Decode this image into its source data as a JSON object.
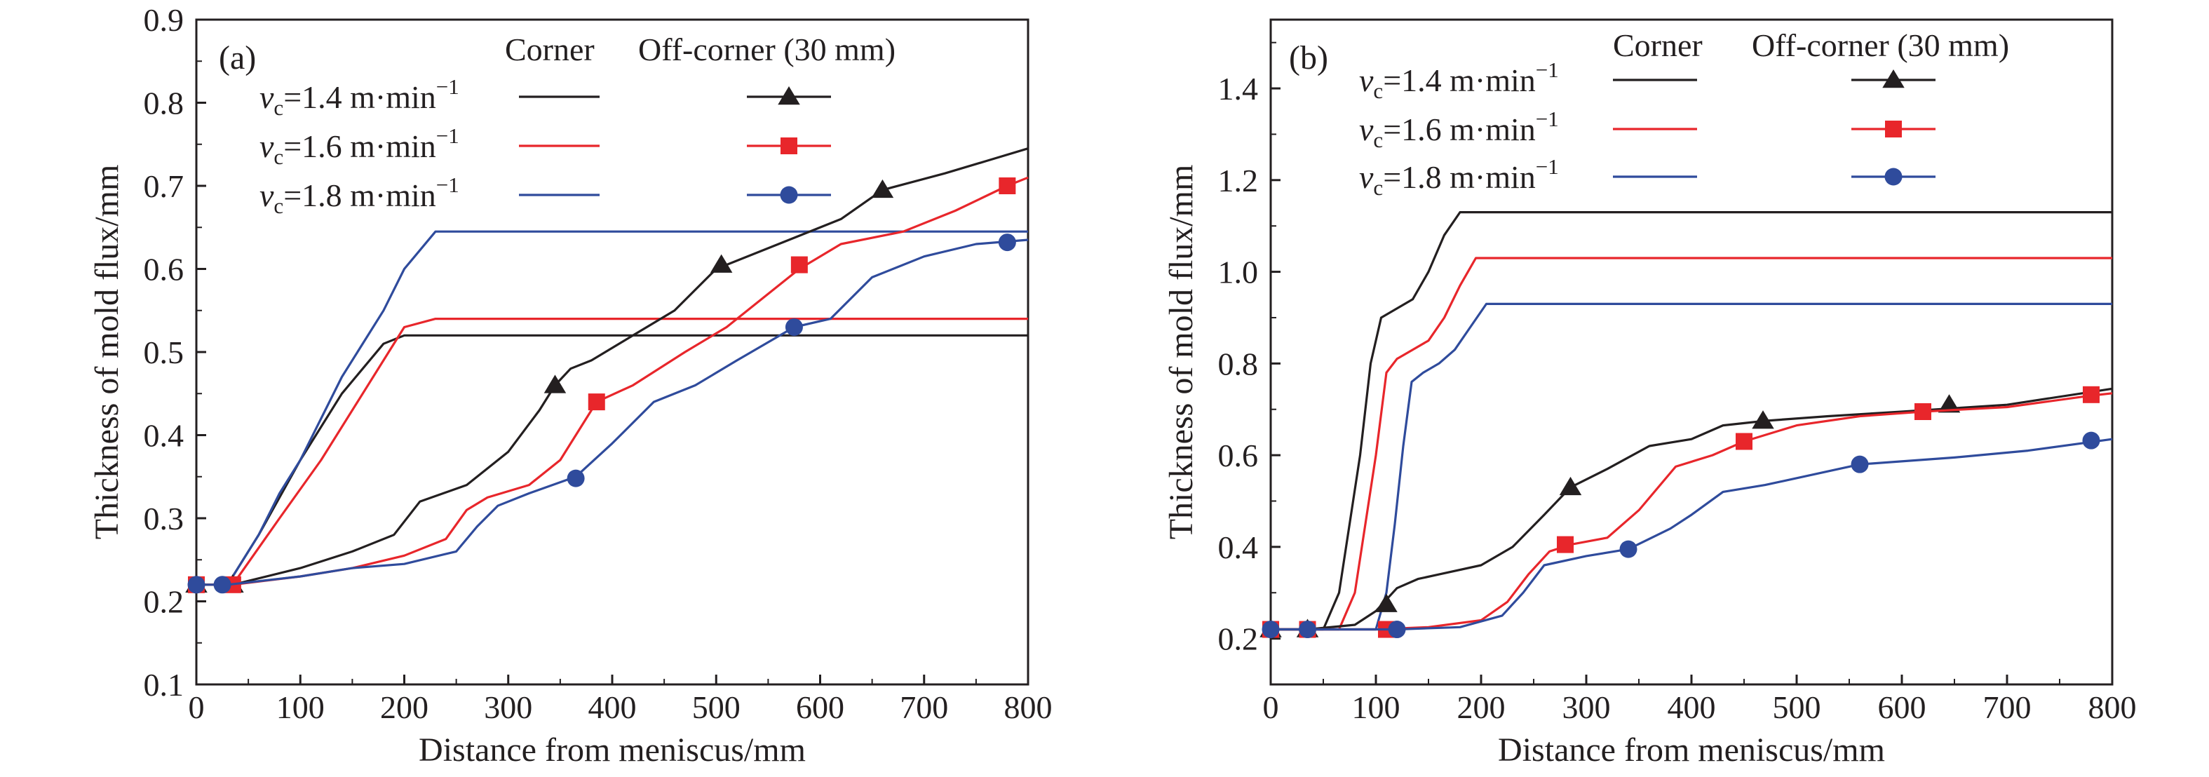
{
  "colors": {
    "black": "#231f20",
    "red": "#e8262b",
    "blue": "#2f4b9c"
  },
  "legend": {
    "header_corner": "Corner",
    "header_off": "Off-corner (30 mm)",
    "entries": [
      {
        "v": "v",
        "sub": "c",
        "text": "=1.4 m·min",
        "sup": "−1",
        "color": "black",
        "marker": "triangle"
      },
      {
        "v": "v",
        "sub": "c",
        "text": "=1.6 m·min",
        "sup": "−1",
        "color": "red",
        "marker": "square"
      },
      {
        "v": "v",
        "sub": "c",
        "text": "=1.8 m·min",
        "sup": "−1",
        "color": "blue",
        "marker": "circle"
      }
    ]
  },
  "chart_data": [
    {
      "type": "line",
      "panel_label": "(a)",
      "xlabel": "Distance from meniscus/mm",
      "ylabel": "Thickness of mold flux/mm",
      "xlim": [
        0,
        800
      ],
      "ylim": [
        0.1,
        0.9
      ],
      "xticks": [
        0,
        100,
        200,
        300,
        400,
        500,
        600,
        700,
        800
      ],
      "yticks": [
        "0.1",
        "0.2",
        "0.3",
        "0.4",
        "0.5",
        "0.6",
        "0.7",
        "0.8",
        "0.9"
      ],
      "series": [
        {
          "name": "Corner, vc=1.4 m·min−1",
          "color": "black",
          "marker": null,
          "x": [
            0,
            30,
            60,
            100,
            140,
            180,
            200,
            800
          ],
          "y": [
            0.22,
            0.22,
            0.28,
            0.37,
            0.45,
            0.51,
            0.52,
            0.52
          ]
        },
        {
          "name": "Corner, vc=1.6 m·min−1",
          "color": "red",
          "marker": null,
          "x": [
            0,
            35,
            80,
            120,
            160,
            200,
            230,
            800
          ],
          "y": [
            0.22,
            0.22,
            0.3,
            0.37,
            0.45,
            0.53,
            0.54,
            0.54
          ]
        },
        {
          "name": "Corner, vc=1.8 m·min−1",
          "color": "blue",
          "marker": null,
          "x": [
            0,
            30,
            60,
            80,
            100,
            140,
            180,
            200,
            230,
            800
          ],
          "y": [
            0.22,
            0.22,
            0.28,
            0.33,
            0.37,
            0.47,
            0.55,
            0.6,
            0.645,
            0.645
          ]
        },
        {
          "name": "Off-corner (30 mm), vc=1.4 m·min−1",
          "color": "black",
          "marker": "triangle",
          "x": [
            0,
            35,
            100,
            150,
            190,
            215,
            260,
            300,
            330,
            345,
            360,
            380,
            420,
            460,
            500,
            560,
            620,
            660,
            720,
            760,
            800
          ],
          "y": [
            0.22,
            0.22,
            0.24,
            0.26,
            0.28,
            0.32,
            0.34,
            0.38,
            0.43,
            0.46,
            0.48,
            0.49,
            0.52,
            0.55,
            0.6,
            0.63,
            0.66,
            0.695,
            0.715,
            0.73,
            0.745
          ],
          "marker_x": [
            0,
            35,
            345,
            505,
            660
          ],
          "marker_y": [
            0.22,
            0.22,
            0.46,
            0.605,
            0.695
          ]
        },
        {
          "name": "Off-corner (30 mm), vc=1.6 m·min−1",
          "color": "red",
          "marker": "square",
          "x": [
            0,
            35,
            100,
            150,
            200,
            240,
            260,
            280,
            320,
            350,
            385,
            420,
            470,
            510,
            540,
            580,
            620,
            680,
            730,
            780,
            800
          ],
          "y": [
            0.22,
            0.22,
            0.23,
            0.24,
            0.255,
            0.275,
            0.31,
            0.325,
            0.34,
            0.37,
            0.44,
            0.46,
            0.5,
            0.53,
            0.56,
            0.6,
            0.63,
            0.645,
            0.67,
            0.7,
            0.71
          ],
          "marker_x": [
            0,
            35,
            385,
            580,
            780
          ],
          "marker_y": [
            0.22,
            0.22,
            0.44,
            0.605,
            0.7
          ]
        },
        {
          "name": "Off-corner (30 mm), vc=1.8 m·min−1",
          "color": "blue",
          "marker": "circle",
          "x": [
            0,
            30,
            100,
            150,
            200,
            250,
            270,
            290,
            320,
            365,
            400,
            440,
            480,
            520,
            575,
            610,
            650,
            700,
            750,
            800
          ],
          "y": [
            0.22,
            0.22,
            0.23,
            0.24,
            0.245,
            0.26,
            0.29,
            0.315,
            0.33,
            0.35,
            0.39,
            0.44,
            0.46,
            0.49,
            0.53,
            0.54,
            0.59,
            0.615,
            0.63,
            0.635
          ],
          "marker_x": [
            0,
            25,
            365,
            575,
            780
          ],
          "marker_y": [
            0.22,
            0.22,
            0.348,
            0.53,
            0.632
          ]
        }
      ]
    },
    {
      "type": "line",
      "panel_label": "(b)",
      "xlabel": "Distance from meniscus/mm",
      "ylabel": "Thickness of mold flux/mm",
      "xlim": [
        0,
        800
      ],
      "ylim": [
        0.1,
        1.55
      ],
      "xticks": [
        0,
        100,
        200,
        300,
        400,
        500,
        600,
        700,
        800
      ],
      "yticks": [
        "0.2",
        "0.4",
        "0.6",
        "0.8",
        "1.0",
        "1.2",
        "1.4"
      ],
      "series": [
        {
          "name": "Corner, vc=1.4 m·min−1",
          "color": "black",
          "marker": null,
          "x": [
            0,
            50,
            65,
            75,
            85,
            95,
            105,
            120,
            135,
            150,
            165,
            180,
            800
          ],
          "y": [
            0.22,
            0.22,
            0.3,
            0.45,
            0.6,
            0.8,
            0.9,
            0.92,
            0.94,
            1.0,
            1.08,
            1.13,
            1.13
          ]
        },
        {
          "name": "Corner, vc=1.6 m·min−1",
          "color": "red",
          "marker": null,
          "x": [
            0,
            65,
            80,
            90,
            100,
            110,
            120,
            135,
            150,
            165,
            180,
            195,
            800
          ],
          "y": [
            0.22,
            0.22,
            0.3,
            0.45,
            0.6,
            0.78,
            0.81,
            0.83,
            0.85,
            0.9,
            0.97,
            1.03,
            1.03
          ]
        },
        {
          "name": "Corner, vc=1.8 m·min−1",
          "color": "blue",
          "marker": null,
          "x": [
            0,
            100,
            110,
            118,
            126,
            134,
            145,
            160,
            175,
            190,
            205,
            800
          ],
          "y": [
            0.22,
            0.22,
            0.3,
            0.45,
            0.62,
            0.76,
            0.78,
            0.8,
            0.83,
            0.88,
            0.93,
            0.93
          ]
        },
        {
          "name": "Off-corner (30 mm), vc=1.4 m·min−1",
          "color": "black",
          "marker": "triangle",
          "x": [
            0,
            35,
            80,
            100,
            120,
            140,
            160,
            200,
            230,
            260,
            285,
            320,
            360,
            400,
            430,
            470,
            530,
            600,
            700,
            800
          ],
          "y": [
            0.22,
            0.22,
            0.23,
            0.26,
            0.31,
            0.33,
            0.34,
            0.36,
            0.4,
            0.47,
            0.53,
            0.57,
            0.62,
            0.635,
            0.665,
            0.675,
            0.685,
            0.695,
            0.71,
            0.745
          ],
          "marker_x": [
            0,
            35,
            110,
            285,
            468,
            645
          ],
          "marker_y": [
            0.22,
            0.22,
            0.275,
            0.53,
            0.675,
            0.71
          ]
        },
        {
          "name": "Off-corner (30 mm), vc=1.6 m·min−1",
          "color": "red",
          "marker": "square",
          "x": [
            0,
            40,
            100,
            150,
            200,
            225,
            245,
            265,
            285,
            320,
            350,
            385,
            420,
            450,
            500,
            560,
            620,
            700,
            780,
            800
          ],
          "y": [
            0.22,
            0.22,
            0.22,
            0.225,
            0.24,
            0.28,
            0.34,
            0.39,
            0.405,
            0.42,
            0.48,
            0.575,
            0.6,
            0.63,
            0.665,
            0.685,
            0.695,
            0.705,
            0.73,
            0.735
          ],
          "marker_x": [
            0,
            35,
            110,
            280,
            450,
            620,
            780
          ],
          "marker_y": [
            0.22,
            0.22,
            0.22,
            0.405,
            0.63,
            0.695,
            0.732
          ]
        },
        {
          "name": "Off-corner (30 mm), vc=1.8 m·min−1",
          "color": "blue",
          "marker": "circle",
          "x": [
            0,
            40,
            120,
            180,
            220,
            240,
            260,
            300,
            340,
            380,
            400,
            430,
            470,
            560,
            650,
            720,
            800
          ],
          "y": [
            0.22,
            0.22,
            0.22,
            0.225,
            0.25,
            0.3,
            0.36,
            0.38,
            0.395,
            0.44,
            0.47,
            0.52,
            0.535,
            0.58,
            0.595,
            0.61,
            0.635
          ],
          "marker_x": [
            0,
            35,
            120,
            340,
            560,
            780
          ],
          "marker_y": [
            0.22,
            0.22,
            0.22,
            0.395,
            0.58,
            0.632
          ]
        }
      ]
    }
  ]
}
